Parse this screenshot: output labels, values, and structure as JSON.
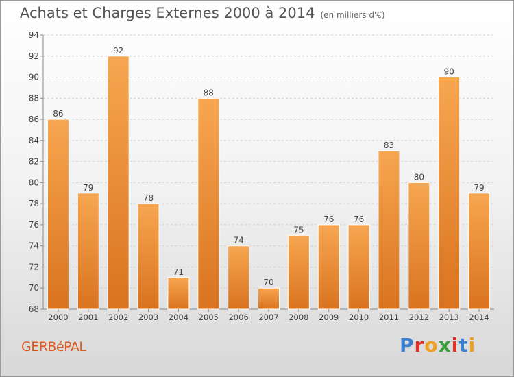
{
  "header": {
    "title": "Achats et Charges Externes 2000 à 2014",
    "subtitle": "(en milliers d'€)"
  },
  "footer": {
    "commune": "GERBéPAL",
    "brand": [
      {
        "char": "P",
        "color": "#3a7fd0"
      },
      {
        "char": "r",
        "color": "#e0302a"
      },
      {
        "char": "o",
        "color": "#f0a020"
      },
      {
        "char": "x",
        "color": "#3aa03a"
      },
      {
        "char": "i",
        "color": "#e0302a"
      },
      {
        "char": "t",
        "color": "#3a7fd0"
      },
      {
        "char": "i",
        "color": "#f0a020"
      }
    ]
  },
  "colors": {
    "bar_top": "#f7a651",
    "bar_bottom": "#d9731f",
    "grid": "#cfcfcf",
    "axis": "#888888",
    "text": "#444444"
  },
  "chart_data": {
    "type": "bar",
    "title": "Achats et Charges Externes 2000 à 2014",
    "subtitle": "(en milliers d'€)",
    "categories": [
      "2000",
      "2001",
      "2002",
      "2003",
      "2004",
      "2005",
      "2006",
      "2007",
      "2008",
      "2009",
      "2010",
      "2011",
      "2012",
      "2013",
      "2014"
    ],
    "values": [
      86,
      79,
      92,
      78,
      71,
      88,
      74,
      70,
      75,
      76,
      76,
      83,
      80,
      90,
      79
    ],
    "ylim": [
      68,
      94
    ],
    "yticks": [
      68,
      70,
      72,
      74,
      76,
      78,
      80,
      82,
      84,
      86,
      88,
      90,
      92,
      94
    ],
    "grid": true,
    "data_labels": true
  }
}
